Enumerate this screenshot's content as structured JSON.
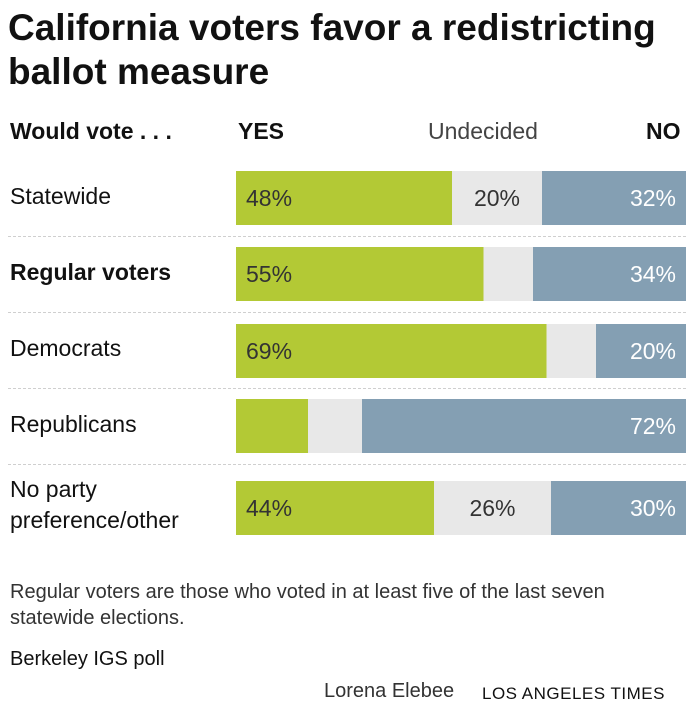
{
  "title": "California voters favor a redistricting ballot measure",
  "headers": {
    "group": "Would vote . . .",
    "yes": "YES",
    "undecided": "Undecided",
    "no": "NO"
  },
  "colors": {
    "yes": "#b3c935",
    "undecided": "#e8e8e8",
    "no": "#849fb3"
  },
  "chart_data": {
    "type": "bar",
    "orientation": "horizontal-stacked",
    "title": "California voters favor a redistricting ballot measure",
    "categories": [
      "Statewide",
      "Regular voters",
      "Democrats",
      "Republicans",
      "No party preference/other"
    ],
    "series": [
      {
        "name": "YES",
        "values": [
          48,
          55,
          69,
          16,
          44
        ],
        "labels": [
          "48%",
          "55%",
          "69%",
          "",
          "44%"
        ]
      },
      {
        "name": "Undecided",
        "values": [
          20,
          11,
          11,
          12,
          26
        ],
        "labels": [
          "20%",
          "",
          "",
          "",
          "26%"
        ]
      },
      {
        "name": "NO",
        "values": [
          32,
          34,
          20,
          72,
          30
        ],
        "labels": [
          "32%",
          "34%",
          "20%",
          "72%",
          "30%"
        ]
      }
    ],
    "xlim": [
      0,
      100
    ]
  },
  "rows": [
    {
      "label": "Statewide"
    },
    {
      "label": "Regular voters"
    },
    {
      "label": "Democrats"
    },
    {
      "label": "Republicans"
    },
    {
      "label_line1": "No party",
      "label_line2": "preference/other"
    }
  ],
  "note": "Regular voters are those who voted in at least five of the last seven statewide elections.",
  "source": "Berkeley IGS poll",
  "credit": {
    "author": "Lorena Elebee",
    "org": "LOS ANGELES TIMES"
  }
}
